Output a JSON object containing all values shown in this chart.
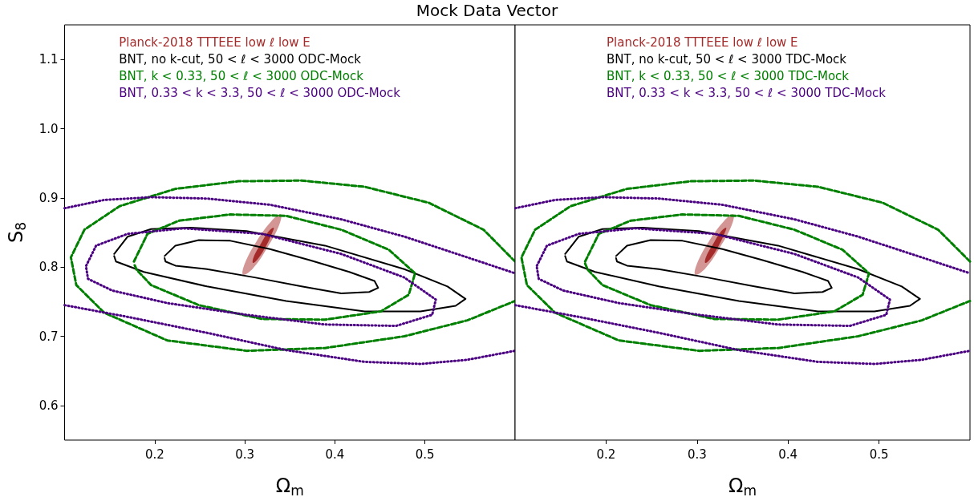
{
  "chart_data": [
    {
      "type": "line",
      "title": "Mock Data Vector",
      "xlabel": "Ω$_{m}$",
      "ylabel": "S$_{8}$",
      "xlim": [
        0.1,
        0.6
      ],
      "ylim": [
        0.55,
        1.15
      ],
      "xticks": [
        0.2,
        0.3,
        0.4,
        0.5
      ],
      "yticks": [
        0.6,
        0.7,
        0.8,
        0.9,
        {
          "value": 1.0,
          "label": "1.0"
        },
        1.1
      ],
      "legend": "top",
      "series": [
        {
          "type": "area",
          "color": "#d49595",
          "x": [
            0.34,
            0.338,
            0.325,
            0.309,
            0.298,
            0.3,
            0.313,
            0.33
          ],
          "values": [
            0.876,
            0.86,
            0.828,
            0.798,
            0.789,
            0.805,
            0.837,
            0.867
          ]
        },
        {
          "type": "area",
          "name": "Planck-2018 TTTEEE low ℓ low E",
          "color": "#a52a2a",
          "x": [
            0.332,
            0.33,
            0.323,
            0.314,
            0.309,
            0.31,
            0.318,
            0.326
          ],
          "values": [
            0.857,
            0.848,
            0.829,
            0.811,
            0.806,
            0.815,
            0.834,
            0.851
          ]
        },
        {
          "name": "BNT, no k-cut, 50 < ℓ < 3000 ODC-Mock",
          "color": "#000000",
          "line_style": "solid",
          "x": [
            0.155,
            0.17,
            0.196,
            0.24,
            0.302,
            0.389,
            0.477,
            0.525,
            0.545,
            0.534,
            0.495,
            0.433,
            0.346,
            0.258,
            0.188,
            0.157,
            0.155
          ],
          "values": [
            0.819,
            0.844,
            0.855,
            0.857,
            0.852,
            0.831,
            0.797,
            0.772,
            0.754,
            0.744,
            0.736,
            0.736,
            0.751,
            0.772,
            0.793,
            0.808,
            0.816
          ]
        },
        {
          "color": "#000000",
          "line_style": "solid",
          "x": [
            0.211,
            0.223,
            0.249,
            0.284,
            0.328,
            0.372,
            0.416,
            0.444,
            0.448,
            0.438,
            0.407,
            0.363,
            0.311,
            0.258,
            0.223,
            0.212,
            0.211
          ],
          "values": [
            0.816,
            0.831,
            0.839,
            0.838,
            0.826,
            0.81,
            0.793,
            0.78,
            0.77,
            0.764,
            0.762,
            0.772,
            0.785,
            0.797,
            0.802,
            0.808,
            0.813
          ]
        },
        {
          "name": "BNT, k < 0.33, 50 < ℓ < 3000 ODC-Mock",
          "color": "#008000",
          "line_style": "dashed",
          "x": [
            0.6,
            0.565,
            0.504,
            0.433,
            0.363,
            0.293,
            0.223,
            0.161,
            0.122,
            0.107,
            0.113,
            0.144,
            0.214,
            0.302,
            0.389,
            0.477,
            0.547,
            0.6
          ],
          "values": [
            0.808,
            0.854,
            0.893,
            0.916,
            0.925,
            0.924,
            0.913,
            0.888,
            0.854,
            0.814,
            0.774,
            0.734,
            0.694,
            0.679,
            0.683,
            0.7,
            0.723,
            0.751
          ]
        },
        {
          "color": "#008000",
          "line_style": "dashed",
          "x": [
            0.177,
            0.192,
            0.227,
            0.284,
            0.346,
            0.407,
            0.46,
            0.489,
            0.482,
            0.451,
            0.389,
            0.319,
            0.249,
            0.196,
            0.18,
            0.177
          ],
          "values": [
            0.808,
            0.848,
            0.867,
            0.876,
            0.874,
            0.854,
            0.825,
            0.791,
            0.76,
            0.736,
            0.724,
            0.725,
            0.745,
            0.774,
            0.796,
            0.805
          ]
        },
        {
          "name": "BNT, 0.33 < k < 3.3, 50 < ℓ < 3000 ODC-Mock",
          "color": "#4b0082",
          "line_style": "dotted",
          "x": [
            0.1,
            0.144,
            0.196,
            0.258,
            0.328,
            0.407,
            0.477,
            0.547,
            0.6,
            null,
            0.1,
            0.17,
            0.258,
            0.346,
            0.433,
            0.495,
            0.547,
            0.6
          ],
          "values": [
            0.885,
            0.897,
            0.901,
            0.899,
            0.89,
            0.869,
            0.844,
            0.814,
            0.791,
            null,
            0.745,
            0.728,
            0.705,
            0.68,
            0.663,
            0.66,
            0.666,
            0.679
          ]
        },
        {
          "color": "#4b0082",
          "line_style": "dotted",
          "x": [
            0.124,
            0.135,
            0.17,
            0.232,
            0.319,
            0.407,
            0.477,
            0.512,
            0.508,
            0.468,
            0.389,
            0.302,
            0.214,
            0.153,
            0.126,
            0.124
          ],
          "values": [
            0.802,
            0.831,
            0.848,
            0.856,
            0.848,
            0.819,
            0.785,
            0.753,
            0.731,
            0.715,
            0.717,
            0.731,
            0.748,
            0.766,
            0.783,
            0.799
          ]
        }
      ]
    },
    {
      "type": "line",
      "xlabel": "Ω$_{m}$",
      "xlim": [
        0.1,
        0.6
      ],
      "ylim": [
        0.55,
        1.15
      ],
      "xticks": [
        0.2,
        0.3,
        0.4,
        0.5
      ],
      "yticks": [
        0.6,
        0.7,
        0.8,
        0.9,
        1.0,
        1.1
      ],
      "tick_labels": "x",
      "legend": "top",
      "series": [
        {
          "type": "area",
          "color": "#d49595",
          "x": [
            0.34,
            0.338,
            0.325,
            0.309,
            0.298,
            0.3,
            0.313,
            0.33
          ],
          "values": [
            0.876,
            0.86,
            0.828,
            0.798,
            0.789,
            0.805,
            0.837,
            0.867
          ]
        },
        {
          "type": "area",
          "name": "Planck-2018 TTTEEE low ℓ low E",
          "color": "#a52a2a",
          "x": [
            0.332,
            0.33,
            0.323,
            0.314,
            0.309,
            0.31,
            0.318,
            0.326
          ],
          "values": [
            0.857,
            0.848,
            0.829,
            0.811,
            0.806,
            0.815,
            0.834,
            0.851
          ]
        },
        {
          "name": "BNT, no k-cut, 50 < ℓ < 3000 TDC-Mock",
          "color": "#000000",
          "line_style": "solid",
          "x": [
            0.155,
            0.17,
            0.196,
            0.24,
            0.302,
            0.389,
            0.477,
            0.525,
            0.545,
            0.534,
            0.495,
            0.433,
            0.346,
            0.258,
            0.188,
            0.157,
            0.155
          ],
          "values": [
            0.819,
            0.844,
            0.855,
            0.857,
            0.852,
            0.831,
            0.797,
            0.772,
            0.754,
            0.744,
            0.736,
            0.736,
            0.751,
            0.772,
            0.793,
            0.808,
            0.816
          ]
        },
        {
          "color": "#000000",
          "line_style": "solid",
          "x": [
            0.211,
            0.223,
            0.249,
            0.284,
            0.328,
            0.372,
            0.416,
            0.444,
            0.448,
            0.438,
            0.407,
            0.363,
            0.311,
            0.258,
            0.223,
            0.212,
            0.211
          ],
          "values": [
            0.816,
            0.831,
            0.839,
            0.838,
            0.826,
            0.81,
            0.793,
            0.78,
            0.77,
            0.764,
            0.762,
            0.772,
            0.785,
            0.797,
            0.802,
            0.808,
            0.813
          ]
        },
        {
          "name": "BNT, k < 0.33, 50 < ℓ < 3000 TDC-Mock",
          "color": "#008000",
          "line_style": "dashed",
          "x": [
            0.6,
            0.565,
            0.504,
            0.433,
            0.363,
            0.293,
            0.223,
            0.161,
            0.122,
            0.107,
            0.113,
            0.144,
            0.214,
            0.302,
            0.389,
            0.477,
            0.547,
            0.6
          ],
          "values": [
            0.808,
            0.854,
            0.893,
            0.916,
            0.925,
            0.924,
            0.913,
            0.888,
            0.854,
            0.814,
            0.774,
            0.734,
            0.694,
            0.679,
            0.683,
            0.7,
            0.723,
            0.751
          ]
        },
        {
          "color": "#008000",
          "line_style": "dashed",
          "x": [
            0.177,
            0.192,
            0.227,
            0.284,
            0.346,
            0.407,
            0.46,
            0.489,
            0.482,
            0.451,
            0.389,
            0.319,
            0.249,
            0.196,
            0.18,
            0.177
          ],
          "values": [
            0.808,
            0.848,
            0.867,
            0.876,
            0.874,
            0.854,
            0.825,
            0.791,
            0.76,
            0.736,
            0.724,
            0.725,
            0.745,
            0.774,
            0.796,
            0.805
          ]
        },
        {
          "name": "BNT, 0.33 < k < 3.3, 50 < ℓ < 3000 TDC-Mock",
          "color": "#4b0082",
          "line_style": "dotted",
          "x": [
            0.1,
            0.144,
            0.196,
            0.258,
            0.328,
            0.407,
            0.477,
            0.547,
            0.6,
            null,
            0.1,
            0.17,
            0.258,
            0.346,
            0.433,
            0.495,
            0.547,
            0.6
          ],
          "values": [
            0.885,
            0.897,
            0.901,
            0.899,
            0.89,
            0.869,
            0.844,
            0.814,
            0.791,
            null,
            0.745,
            0.728,
            0.705,
            0.68,
            0.663,
            0.66,
            0.666,
            0.679
          ]
        },
        {
          "color": "#4b0082",
          "line_style": "dotted",
          "x": [
            0.124,
            0.135,
            0.17,
            0.232,
            0.319,
            0.407,
            0.477,
            0.512,
            0.508,
            0.468,
            0.389,
            0.302,
            0.214,
            0.153,
            0.126,
            0.124
          ],
          "values": [
            0.802,
            0.831,
            0.848,
            0.856,
            0.848,
            0.819,
            0.785,
            0.753,
            0.731,
            0.715,
            0.717,
            0.731,
            0.748,
            0.766,
            0.783,
            0.799
          ]
        }
      ]
    }
  ]
}
